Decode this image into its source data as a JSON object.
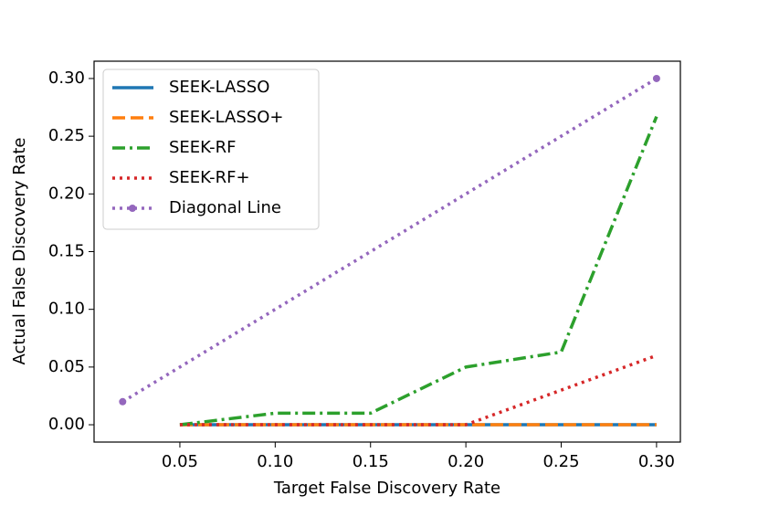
{
  "chart_data": {
    "type": "line",
    "xlabel": "Target False Discovery Rate",
    "ylabel": "Actual False Discovery Rate",
    "xlim": [
      0.005,
      0.3125
    ],
    "ylim": [
      -0.015,
      0.315
    ],
    "xticks": [
      {
        "value": 0.05,
        "label": "0.05"
      },
      {
        "value": 0.1,
        "label": "0.10"
      },
      {
        "value": 0.15,
        "label": "0.15"
      },
      {
        "value": 0.2,
        "label": "0.20"
      },
      {
        "value": 0.25,
        "label": "0.25"
      },
      {
        "value": 0.3,
        "label": "0.30"
      }
    ],
    "yticks": [
      {
        "value": 0,
        "label": "0.00"
      },
      {
        "value": 0.05,
        "label": "0.05"
      },
      {
        "value": 0.1,
        "label": "0.10"
      },
      {
        "value": 0.15,
        "label": "0.15"
      },
      {
        "value": 0.2,
        "label": "0.20"
      },
      {
        "value": 0.25,
        "label": "0.25"
      },
      {
        "value": 0.3,
        "label": "0.30"
      }
    ],
    "legend": "upper left",
    "series": [
      {
        "name": "SEEK-LASSO",
        "color": "#1f77b4",
        "linestyle": "solid",
        "x": [
          0.05,
          0.1,
          0.15,
          0.2,
          0.25,
          0.3
        ],
        "values": [
          0,
          0,
          0,
          0,
          0,
          0
        ]
      },
      {
        "name": "SEEK-LASSO+",
        "color": "#ff7f0e",
        "linestyle": "dashed",
        "x": [
          0.05,
          0.1,
          0.15,
          0.2,
          0.25,
          0.3
        ],
        "values": [
          0,
          0,
          0,
          0,
          0,
          0
        ]
      },
      {
        "name": "SEEK-RF",
        "color": "#2ca02c",
        "linestyle": "dashdot",
        "x": [
          0.05,
          0.1,
          0.15,
          0.2,
          0.25,
          0.3
        ],
        "values": [
          0,
          0.01,
          0.01,
          0.05,
          0.063,
          0.267
        ]
      },
      {
        "name": "SEEK-RF+",
        "color": "#d62728",
        "linestyle": "dotted",
        "x": [
          0.05,
          0.1,
          0.15,
          0.2,
          0.25,
          0.3
        ],
        "values": [
          0,
          0,
          0,
          0,
          0.03,
          0.06
        ]
      },
      {
        "name": "Diagonal Line",
        "color": "#9467bd",
        "linestyle": "dotted",
        "marker": "circle",
        "x": [
          0.02,
          0.3
        ],
        "values": [
          0.02,
          0.3
        ]
      }
    ]
  }
}
